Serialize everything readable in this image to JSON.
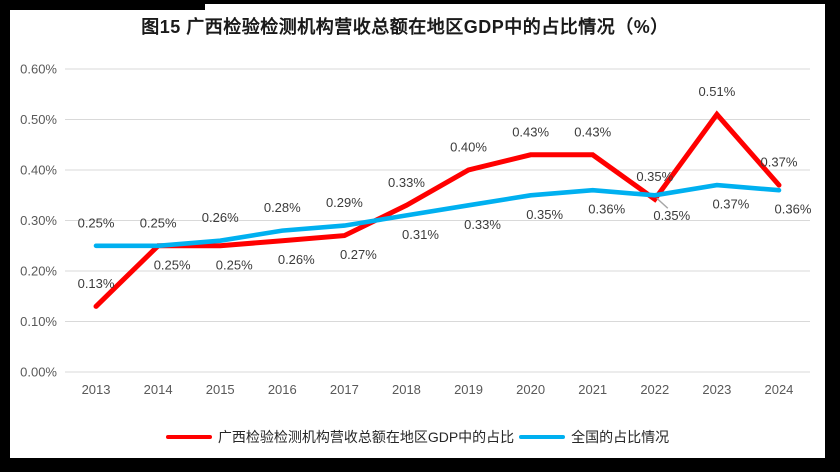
{
  "chart_data": {
    "type": "line",
    "title": "图15 广西检验检测机构营收总额在地区GDP中的占比情况（%）",
    "categories": [
      "2013",
      "2014",
      "2015",
      "2016",
      "2017",
      "2018",
      "2019",
      "2020",
      "2021",
      "2022",
      "2023",
      "2024"
    ],
    "y_axis": {
      "min": 0,
      "max": 0.6,
      "step": 0.1,
      "ticks": [
        "0.00%",
        "0.10%",
        "0.20%",
        "0.30%",
        "0.40%",
        "0.50%",
        "0.60%"
      ],
      "grid": true,
      "format": "percent"
    },
    "legend_position": "bottom",
    "series": [
      {
        "name": "广西检验检测机构营收总额在地区GDP中的占比",
        "color": "#FF0000",
        "values": [
          0.13,
          0.25,
          0.25,
          0.26,
          0.27,
          0.33,
          0.4,
          0.43,
          0.43,
          0.35,
          0.51,
          0.37
        ],
        "labels": [
          "0.13%",
          "0.25%",
          "0.25%",
          "0.26%",
          "0.27%",
          "0.33%",
          "0.40%",
          "0.43%",
          "0.43%",
          "0.35%",
          "0.51%",
          "0.37%"
        ],
        "label_positions": [
          "above",
          "below",
          "below",
          "below",
          "below",
          "above",
          "above",
          "above",
          "above",
          "above",
          "above",
          "above"
        ]
      },
      {
        "name": "全国的占比情况",
        "color": "#00B0F0",
        "values": [
          0.25,
          0.25,
          0.26,
          0.28,
          0.29,
          0.31,
          0.33,
          0.35,
          0.36,
          0.35,
          0.37,
          0.36
        ],
        "labels": [
          "0.25%",
          "0.25%",
          "0.26%",
          "0.28%",
          "0.29%",
          "0.31%",
          "0.33%",
          "0.35%",
          "0.36%",
          "0.35%",
          "0.37%",
          "0.36%"
        ],
        "label_positions": [
          "above",
          "above",
          "above",
          "above",
          "above",
          "below",
          "below",
          "below",
          "below",
          "below-leader",
          "below",
          "below"
        ]
      }
    ],
    "colors": {
      "gridline": "#D9D9D9",
      "axis_text": "#595959",
      "data_label_text": "#3B3B3B",
      "leader_line": "#A6A6A6",
      "title_text": "#1A1A1A"
    }
  }
}
